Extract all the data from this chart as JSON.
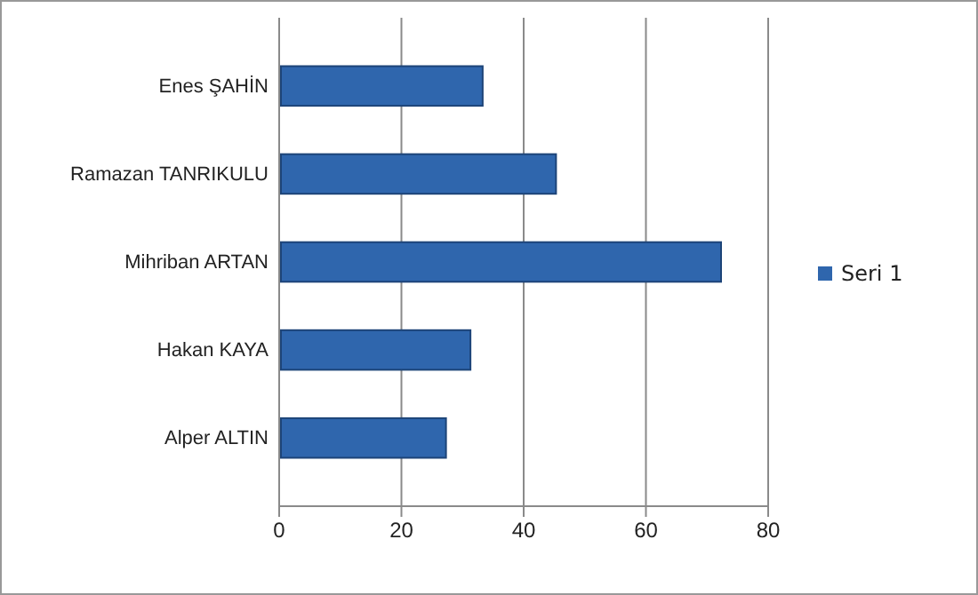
{
  "chart_data": {
    "type": "bar",
    "orientation": "horizontal",
    "categories": [
      "Enes ŞAHİN",
      "Ramazan TANRIKULU",
      "Mihriban ARTAN",
      "Hakan KAYA",
      "Alper ALTIN"
    ],
    "series": [
      {
        "name": "Seri 1",
        "color": "#2f66ad",
        "values": [
          33,
          45,
          72,
          31,
          27
        ]
      }
    ],
    "xlim": [
      0,
      80
    ],
    "xticks": [
      0,
      20,
      40,
      60,
      80
    ],
    "grid": "x",
    "legend": "right"
  }
}
